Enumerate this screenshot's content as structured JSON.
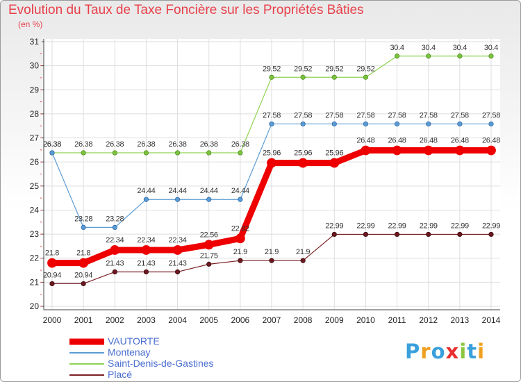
{
  "chart_data": {
    "type": "line",
    "title": "Evolution du Taux de Taxe Foncière sur les Propriétés Bâties",
    "unit_label": "(en %)",
    "xlabel": "",
    "ylabel": "",
    "ylim": [
      20,
      31
    ],
    "y_ticks": [
      "20",
      "21",
      "22",
      "23",
      "24",
      "25",
      "26",
      "27",
      "28",
      "29",
      "30",
      "31"
    ],
    "x": [
      "2000",
      "2001",
      "2002",
      "2003",
      "2004",
      "2005",
      "2006",
      "2007",
      "2008",
      "2009",
      "2010",
      "2011",
      "2012",
      "2013",
      "2014"
    ],
    "series": [
      {
        "name": "Saint-Denis-de-Gastines",
        "color": "#8fd352",
        "values": [
          26.38,
          26.38,
          26.38,
          26.38,
          26.38,
          26.38,
          26.38,
          29.52,
          29.52,
          29.52,
          29.52,
          30.4,
          30.4,
          30.4,
          30.4
        ],
        "labels": [
          "26.38",
          "26.38",
          "26.38",
          "26.38",
          "26.38",
          "26.38",
          "26.38",
          "29.52",
          "29.52",
          "29.52",
          "29.52",
          "30.4",
          "30.4",
          "30.4",
          "30.4"
        ]
      },
      {
        "name": "Montenay",
        "color": "#5b9bd5",
        "values": [
          26.38,
          23.28,
          23.28,
          24.44,
          24.44,
          24.44,
          24.44,
          27.58,
          27.58,
          27.58,
          27.58,
          27.58,
          27.58,
          27.58,
          27.58
        ],
        "labels": [
          "26.38",
          "23.28",
          "23.28",
          "24.44",
          "24.44",
          "24.44",
          "24.44",
          "27.58",
          "27.58",
          "27.58",
          "27.58",
          "27.58",
          "27.58",
          "27.58",
          "27.58"
        ]
      },
      {
        "name": "Placé",
        "color": "#7a1f24",
        "values": [
          20.94,
          20.94,
          21.43,
          21.43,
          21.43,
          21.75,
          21.9,
          21.9,
          21.9,
          22.99,
          22.99,
          22.99,
          22.99,
          22.99,
          22.99
        ],
        "labels": [
          "20.94",
          "20.94",
          "21.43",
          "21.43",
          "21.43",
          "21.75",
          "21.9",
          "21.9",
          "21.9",
          "22.99",
          "22.99",
          "22.99",
          "22.99",
          "22.99",
          "22.99"
        ]
      },
      {
        "name": "VAUTORTE",
        "color": "#ee0000",
        "values": [
          21.8,
          21.8,
          22.34,
          22.34,
          22.34,
          22.56,
          22.82,
          25.96,
          25.96,
          25.96,
          26.48,
          26.48,
          26.48,
          26.48,
          26.48
        ],
        "labels": [
          "21.8",
          "21.8",
          "22.34",
          "22.34",
          "22.34",
          "22.56",
          "22.82",
          "25.96",
          "25.96",
          "25.96",
          "26.48",
          "26.48",
          "26.48",
          "26.48",
          "26.48"
        ]
      }
    ],
    "legend_order": [
      "VAUTORTE",
      "Montenay",
      "Saint-Denis-de-Gastines",
      "Placé"
    ],
    "legend_position": "bottom-left"
  },
  "logo": {
    "letters": [
      "P",
      "r",
      "o",
      "x",
      "i",
      "t",
      "i"
    ],
    "colors": [
      "#3aa0dc",
      "#f0a020",
      "#3aa0dc",
      "#e83030",
      "#8cc63f",
      "#3aa0dc",
      "#f0a020"
    ]
  }
}
